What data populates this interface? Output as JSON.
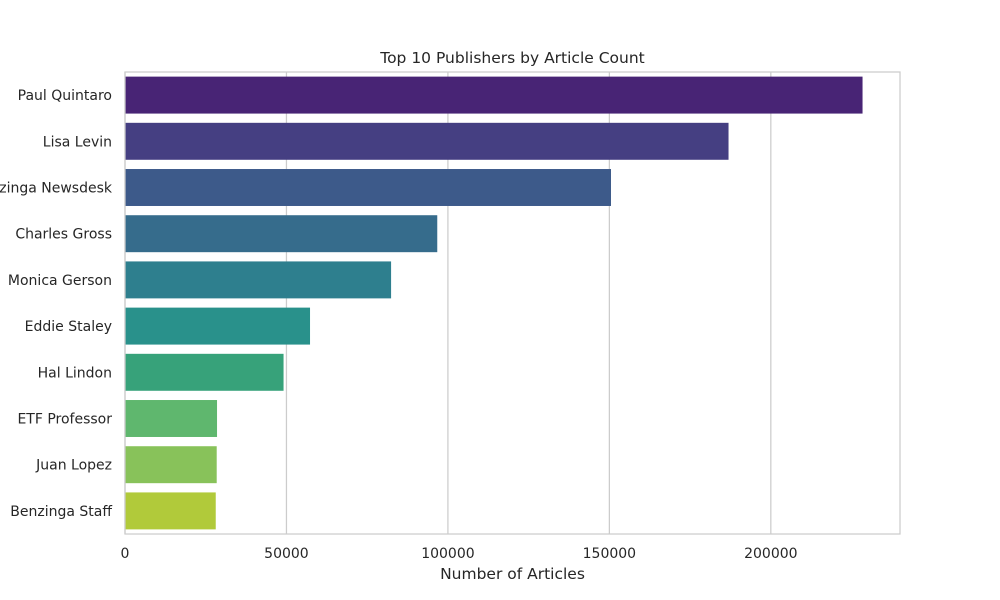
{
  "chart_data": {
    "type": "bar",
    "orientation": "horizontal",
    "title": "Top 10 Publishers by Article Count",
    "xlabel": "Number of Articles",
    "ylabel": "",
    "xlim": [
      0,
      240000
    ],
    "xticks": [
      0,
      50000,
      100000,
      150000,
      200000
    ],
    "xtick_labels": [
      "0",
      "50000",
      "100000",
      "150000",
      "200000"
    ],
    "grid": true,
    "categories": [
      "Paul Quintaro",
      "Lisa Levin",
      "Benzinga Newsdesk",
      "Charles Gross",
      "Monica Gerson",
      "Eddie Staley",
      "Hal Lindon",
      "ETF Professor",
      "Juan Lopez",
      "Benzinga Staff"
    ],
    "values": [
      228400,
      186900,
      150500,
      96700,
      82400,
      57300,
      49100,
      28500,
      28400,
      28100
    ],
    "colors": [
      "#482475",
      "#453f82",
      "#3d5a8a",
      "#366c8c",
      "#2e7f8e",
      "#29918b",
      "#37a27a",
      "#5fb76e",
      "#88c25a",
      "#b1ca3a"
    ]
  }
}
